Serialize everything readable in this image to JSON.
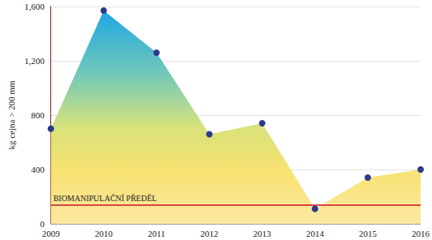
{
  "chart_data": {
    "type": "area",
    "y_label": "kg cejna > 200 mm",
    "categories": [
      "2009",
      "2010",
      "2011",
      "2012",
      "2013",
      "2014",
      "2015",
      "2016"
    ],
    "values": [
      700,
      1570,
      1260,
      660,
      740,
      110,
      340,
      400
    ],
    "color": "#2b3a8f",
    "marker": "circle",
    "ylim": [
      0,
      1600
    ],
    "yticks": [
      0,
      400,
      800,
      1200,
      1600
    ],
    "grid": true,
    "annotations": [
      {
        "text": "BIOMANIPULAČNÍ PŘEDĚL",
        "y": 140,
        "color": "#c8102e"
      }
    ]
  }
}
